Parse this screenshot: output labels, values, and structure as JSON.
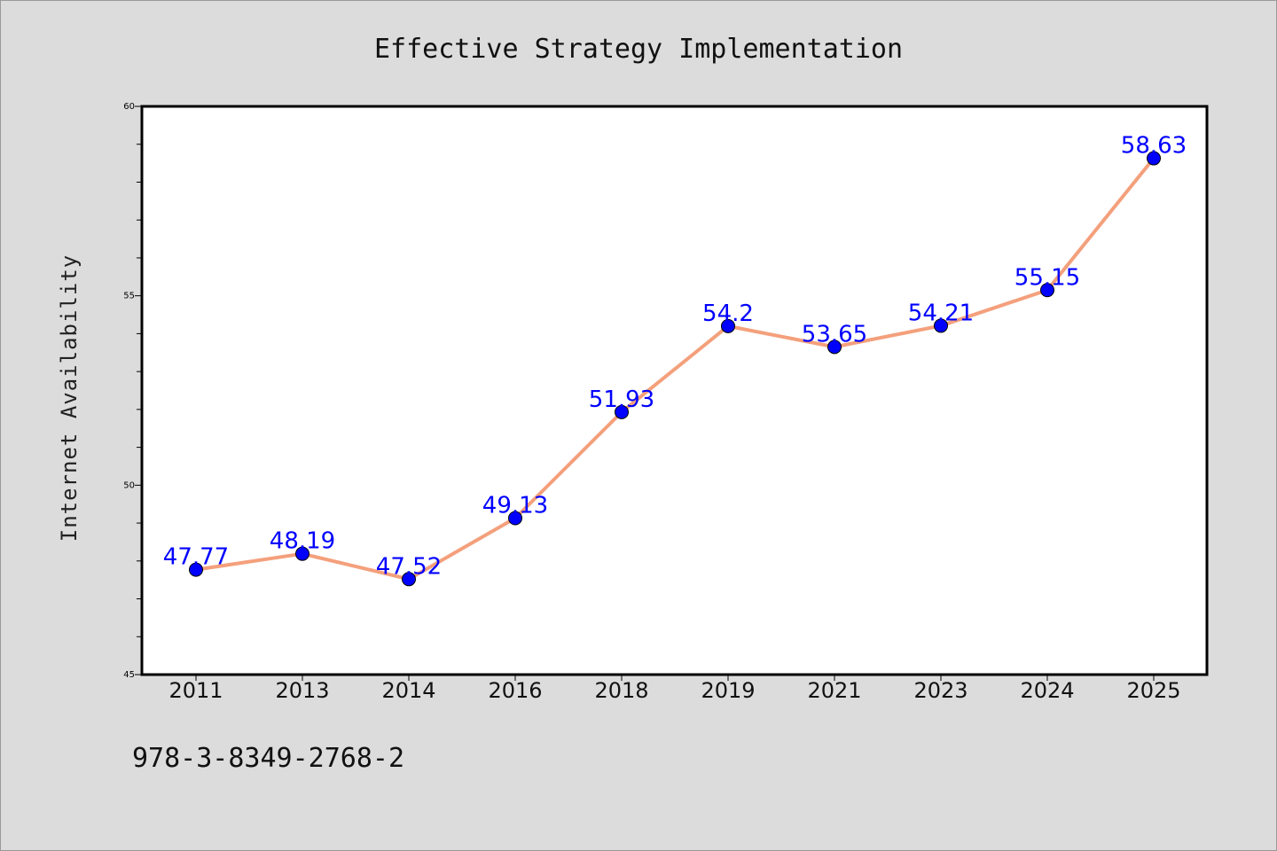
{
  "chart_data": {
    "type": "line",
    "title": "Effective Strategy Implementation",
    "xlabel": "",
    "ylabel": "Internet Availability",
    "categories": [
      "2011",
      "2013",
      "2014",
      "2016",
      "2018",
      "2019",
      "2021",
      "2023",
      "2024",
      "2025"
    ],
    "series": [
      {
        "values": [
          47.77,
          48.19,
          47.52,
          49.13,
          51.93,
          54.2,
          53.65,
          54.21,
          55.15,
          58.63
        ],
        "data_labels": [
          "47.77",
          "48.19",
          "47.52",
          "49.13",
          "51.93",
          "54.2",
          "53.65",
          "54.21",
          "55.15",
          "58.63"
        ],
        "line_color": "#f4a07c",
        "marker_color": "#0000ff"
      }
    ],
    "ylim": [
      45,
      60
    ],
    "yticks": [
      "45",
      "50",
      "55",
      "60"
    ],
    "grid": false,
    "legend": "none"
  },
  "footnote": "978-3-8349-2768-2",
  "colors": {
    "background": "#dcdcdc",
    "plot_area": "#ffffff",
    "line": "#f4a07c",
    "marker": "#0000ff",
    "data_label": "#0000ff"
  }
}
